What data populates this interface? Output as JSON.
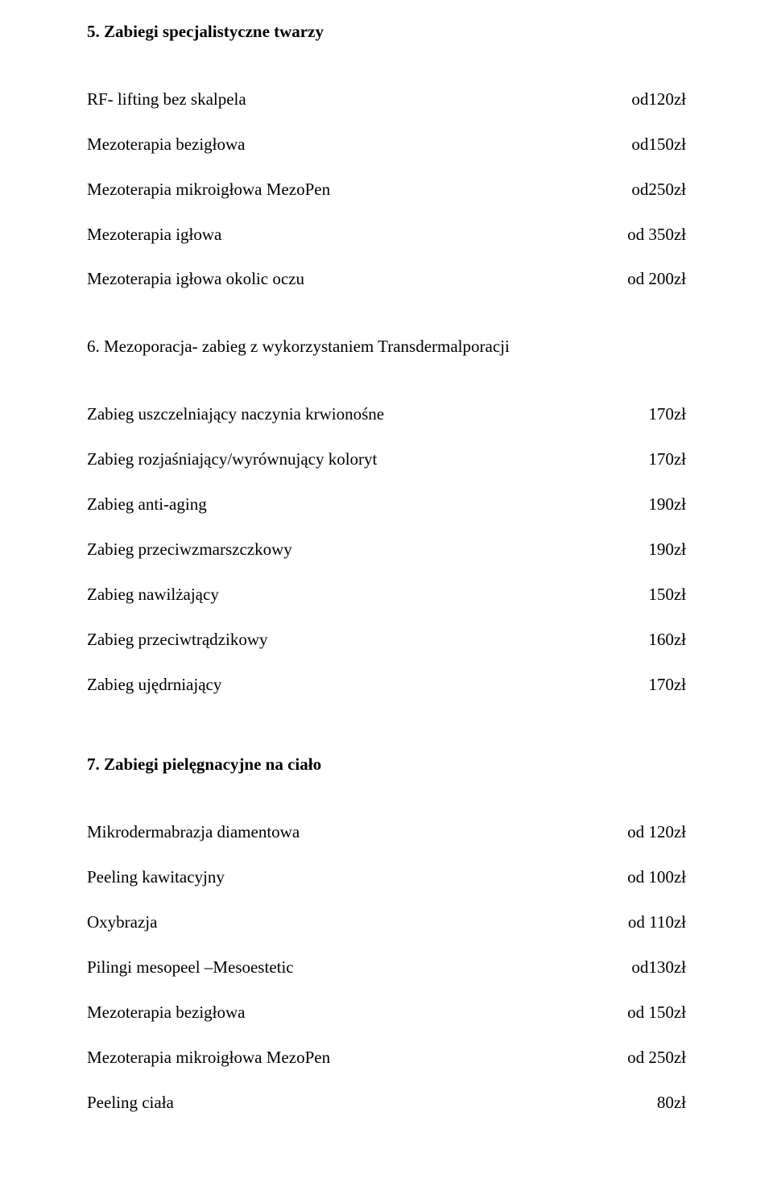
{
  "colors": {
    "background": "#ffffff",
    "text": "#000000"
  },
  "typography": {
    "family": "Times New Roman",
    "body_size_pt": 16,
    "heading_weight": "bold",
    "line_height": 1.9
  },
  "section5": {
    "heading": "5. Zabiegi specjalistyczne twarzy",
    "items": [
      {
        "label": "RF- lifting bez skalpela",
        "price": "od120zł"
      },
      {
        "label": "Mezoterapia bezigłowa",
        "price": "od150zł"
      },
      {
        "label": "Mezoterapia mikroigłowa MezoPen",
        "price": "od250zł"
      },
      {
        "label": "Mezoterapia igłowa",
        "price": "od 350zł"
      },
      {
        "label": "Mezoterapia igłowa okolic oczu",
        "price": "od 200zł"
      }
    ]
  },
  "section6": {
    "heading": "6. Mezoporacja- zabieg z wykorzystaniem Transdermalporacji",
    "items": [
      {
        "label": "Zabieg uszczelniający naczynia krwionośne",
        "price": "170zł"
      },
      {
        "label": "Zabieg rozjaśniający/wyrównujący koloryt",
        "price": "170zł"
      },
      {
        "label": "Zabieg anti-aging",
        "price": "190zł"
      },
      {
        "label": "Zabieg przeciwzmarszczkowy",
        "price": "190zł"
      },
      {
        "label": "Zabieg nawilżający",
        "price": "150zł"
      },
      {
        "label": "Zabieg przeciwtrądzikowy",
        "price": "160zł"
      },
      {
        "label": "Zabieg ujędrniający",
        "price": "170zł"
      }
    ]
  },
  "section7": {
    "heading": "7. Zabiegi pielęgnacyjne  na ciało",
    "items": [
      {
        "label": "Mikrodermabrazja diamentowa",
        "price": "od 120zł"
      },
      {
        "label": "Peeling kawitacyjny",
        "price": "od 100zł"
      },
      {
        "label": "Oxybrazja",
        "price": "od 110zł"
      },
      {
        "label": "Pilingi mesopeel –Mesoestetic",
        "price": "od130zł"
      },
      {
        "label": "Mezoterapia bezigłowa",
        "price": "od 150zł"
      },
      {
        "label": "Mezoterapia mikroigłowa MezoPen",
        "price": "od 250zł"
      },
      {
        "label": "Peeling ciała",
        "price": "80zł"
      }
    ]
  }
}
